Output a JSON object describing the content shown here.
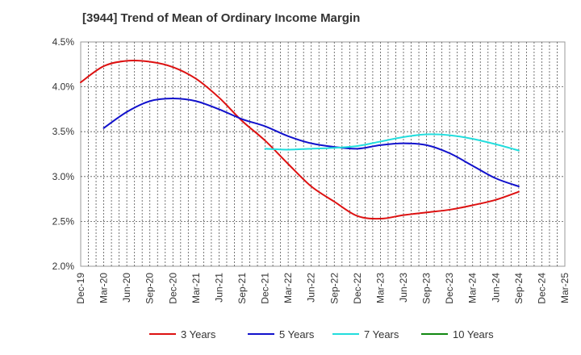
{
  "chart_data": {
    "type": "line",
    "title": "[3944]  Trend of Mean of Ordinary Income Margin",
    "xlabel": "",
    "ylabel": "",
    "ylim": [
      2.0,
      4.5
    ],
    "y_ticks": [
      2.0,
      2.5,
      3.0,
      3.5,
      4.0,
      4.5
    ],
    "y_tick_labels": [
      "2.0%",
      "2.5%",
      "3.0%",
      "3.5%",
      "4.0%",
      "4.5%"
    ],
    "x_tick_labels": [
      "Dec-19",
      "Mar-20",
      "Jun-20",
      "Sep-20",
      "Dec-20",
      "Mar-21",
      "Jun-21",
      "Sep-21",
      "Dec-21",
      "Mar-22",
      "Jun-22",
      "Sep-22",
      "Dec-22",
      "Mar-23",
      "Jun-23",
      "Sep-23",
      "Dec-23",
      "Mar-24",
      "Jun-24",
      "Sep-24",
      "Dec-24",
      "Mar-25"
    ],
    "grid": true,
    "legend_position": "bottom",
    "series": [
      {
        "name": "3 Years",
        "color": "#dd1111",
        "values": [
          4.05,
          4.23,
          4.29,
          4.28,
          4.22,
          4.09,
          3.88,
          3.62,
          3.4,
          3.14,
          2.89,
          2.72,
          2.56,
          2.53,
          2.57,
          2.6,
          2.63,
          2.68,
          2.74,
          2.83
        ]
      },
      {
        "name": "5 Years",
        "color": "#1111cc",
        "values": [
          null,
          3.54,
          3.72,
          3.84,
          3.87,
          3.84,
          3.75,
          3.64,
          3.56,
          3.45,
          3.37,
          3.33,
          3.31,
          3.35,
          3.37,
          3.35,
          3.26,
          3.12,
          2.98,
          2.89
        ]
      },
      {
        "name": "7 Years",
        "color": "#22dddd",
        "values": [
          null,
          null,
          null,
          null,
          null,
          null,
          null,
          null,
          3.31,
          3.3,
          3.31,
          3.32,
          3.34,
          3.39,
          3.44,
          3.47,
          3.46,
          3.42,
          3.36,
          3.29
        ]
      },
      {
        "name": "10 Years",
        "color": "#118811",
        "values": []
      }
    ]
  }
}
